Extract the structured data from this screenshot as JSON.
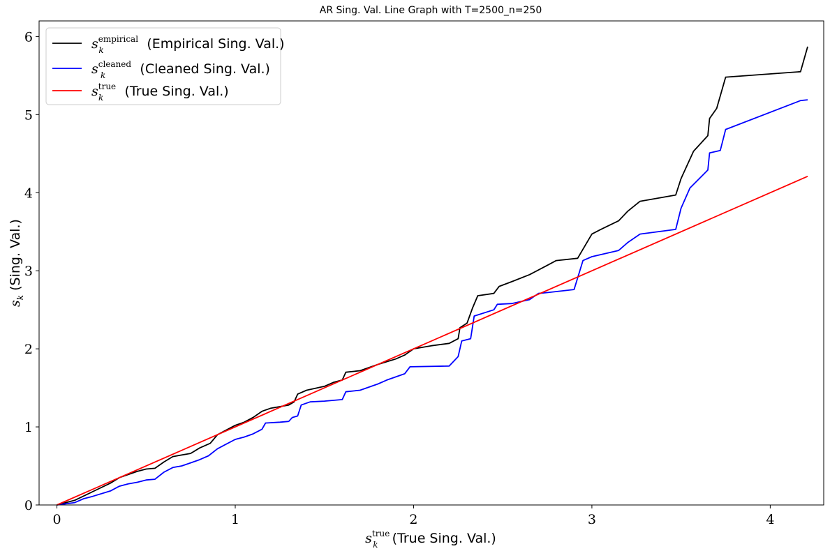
{
  "chart_data": {
    "type": "line",
    "title": "AR Sing. Val. Line Graph with T=2500_n=250",
    "xlabel": {
      "base": "s",
      "sub": "k",
      "sup": "true",
      "text": " (True Sing. Val.)"
    },
    "ylabel": {
      "base": "s",
      "sub": "k",
      "text": " (Sing. Val.)"
    },
    "xlim": [
      -0.1,
      4.3
    ],
    "ylim": [
      0,
      6.2
    ],
    "xticks": [
      0,
      1,
      2,
      3,
      4
    ],
    "yticks": [
      0,
      1,
      2,
      3,
      4,
      5,
      6
    ],
    "grid": false,
    "legend_position": "top-left",
    "series": [
      {
        "name": "(Empirical Sing. Val.)",
        "sup": "empirical",
        "color": "#000000",
        "points": [
          [
            0,
            0
          ],
          [
            0.1,
            0.06
          ],
          [
            0.2,
            0.17
          ],
          [
            0.3,
            0.28
          ],
          [
            0.35,
            0.35
          ],
          [
            0.45,
            0.43
          ],
          [
            0.5,
            0.46
          ],
          [
            0.55,
            0.47
          ],
          [
            0.6,
            0.55
          ],
          [
            0.65,
            0.62
          ],
          [
            0.75,
            0.66
          ],
          [
            0.8,
            0.73
          ],
          [
            0.86,
            0.79
          ],
          [
            0.9,
            0.9
          ],
          [
            0.95,
            0.96
          ],
          [
            1.0,
            1.02
          ],
          [
            1.05,
            1.06
          ],
          [
            1.1,
            1.12
          ],
          [
            1.15,
            1.2
          ],
          [
            1.2,
            1.24
          ],
          [
            1.3,
            1.28
          ],
          [
            1.33,
            1.32
          ],
          [
            1.35,
            1.42
          ],
          [
            1.4,
            1.47
          ],
          [
            1.5,
            1.52
          ],
          [
            1.55,
            1.57
          ],
          [
            1.6,
            1.6
          ],
          [
            1.62,
            1.7
          ],
          [
            1.7,
            1.72
          ],
          [
            1.8,
            1.8
          ],
          [
            1.9,
            1.87
          ],
          [
            1.95,
            1.92
          ],
          [
            2.0,
            2.0
          ],
          [
            2.1,
            2.04
          ],
          [
            2.2,
            2.07
          ],
          [
            2.25,
            2.13
          ],
          [
            2.26,
            2.27
          ],
          [
            2.3,
            2.33
          ],
          [
            2.33,
            2.52
          ],
          [
            2.36,
            2.68
          ],
          [
            2.45,
            2.71
          ],
          [
            2.48,
            2.8
          ],
          [
            2.55,
            2.86
          ],
          [
            2.65,
            2.95
          ],
          [
            2.75,
            3.07
          ],
          [
            2.8,
            3.13
          ],
          [
            2.92,
            3.16
          ],
          [
            3.0,
            3.47
          ],
          [
            3.05,
            3.53
          ],
          [
            3.15,
            3.64
          ],
          [
            3.2,
            3.76
          ],
          [
            3.27,
            3.89
          ],
          [
            3.47,
            3.97
          ],
          [
            3.5,
            4.18
          ],
          [
            3.57,
            4.53
          ],
          [
            3.65,
            4.73
          ],
          [
            3.66,
            4.95
          ],
          [
            3.7,
            5.08
          ],
          [
            3.75,
            5.48
          ],
          [
            4.17,
            5.55
          ],
          [
            4.21,
            5.87
          ]
        ]
      },
      {
        "name": "(Cleaned Sing. Val.)",
        "sup": "cleaned",
        "color": "#0000ff",
        "points": [
          [
            0,
            0
          ],
          [
            0.1,
            0.03
          ],
          [
            0.15,
            0.08
          ],
          [
            0.2,
            0.11
          ],
          [
            0.3,
            0.18
          ],
          [
            0.35,
            0.24
          ],
          [
            0.4,
            0.27
          ],
          [
            0.45,
            0.29
          ],
          [
            0.5,
            0.32
          ],
          [
            0.55,
            0.33
          ],
          [
            0.6,
            0.42
          ],
          [
            0.65,
            0.48
          ],
          [
            0.7,
            0.5
          ],
          [
            0.75,
            0.54
          ],
          [
            0.8,
            0.58
          ],
          [
            0.85,
            0.63
          ],
          [
            0.9,
            0.72
          ],
          [
            0.95,
            0.78
          ],
          [
            1.0,
            0.84
          ],
          [
            1.05,
            0.87
          ],
          [
            1.1,
            0.91
          ],
          [
            1.15,
            0.97
          ],
          [
            1.17,
            1.05
          ],
          [
            1.25,
            1.06
          ],
          [
            1.3,
            1.07
          ],
          [
            1.32,
            1.12
          ],
          [
            1.35,
            1.14
          ],
          [
            1.37,
            1.28
          ],
          [
            1.42,
            1.32
          ],
          [
            1.5,
            1.33
          ],
          [
            1.55,
            1.34
          ],
          [
            1.6,
            1.35
          ],
          [
            1.62,
            1.45
          ],
          [
            1.7,
            1.47
          ],
          [
            1.8,
            1.55
          ],
          [
            1.85,
            1.6
          ],
          [
            1.95,
            1.68
          ],
          [
            1.98,
            1.77
          ],
          [
            2.2,
            1.78
          ],
          [
            2.25,
            1.9
          ],
          [
            2.27,
            2.1
          ],
          [
            2.32,
            2.13
          ],
          [
            2.34,
            2.42
          ],
          [
            2.45,
            2.5
          ],
          [
            2.47,
            2.57
          ],
          [
            2.55,
            2.58
          ],
          [
            2.65,
            2.63
          ],
          [
            2.7,
            2.71
          ],
          [
            2.75,
            2.72
          ],
          [
            2.9,
            2.76
          ],
          [
            2.95,
            3.13
          ],
          [
            3.0,
            3.18
          ],
          [
            3.15,
            3.26
          ],
          [
            3.2,
            3.36
          ],
          [
            3.27,
            3.47
          ],
          [
            3.47,
            3.53
          ],
          [
            3.5,
            3.8
          ],
          [
            3.55,
            4.06
          ],
          [
            3.65,
            4.29
          ],
          [
            3.66,
            4.51
          ],
          [
            3.72,
            4.54
          ],
          [
            3.75,
            4.81
          ],
          [
            4.17,
            5.18
          ],
          [
            4.21,
            5.19
          ]
        ]
      },
      {
        "name": "(True Sing. Val.)",
        "sup": "true",
        "color": "#ff0000",
        "points": [
          [
            0,
            0
          ],
          [
            4.21,
            4.21
          ]
        ]
      }
    ]
  }
}
